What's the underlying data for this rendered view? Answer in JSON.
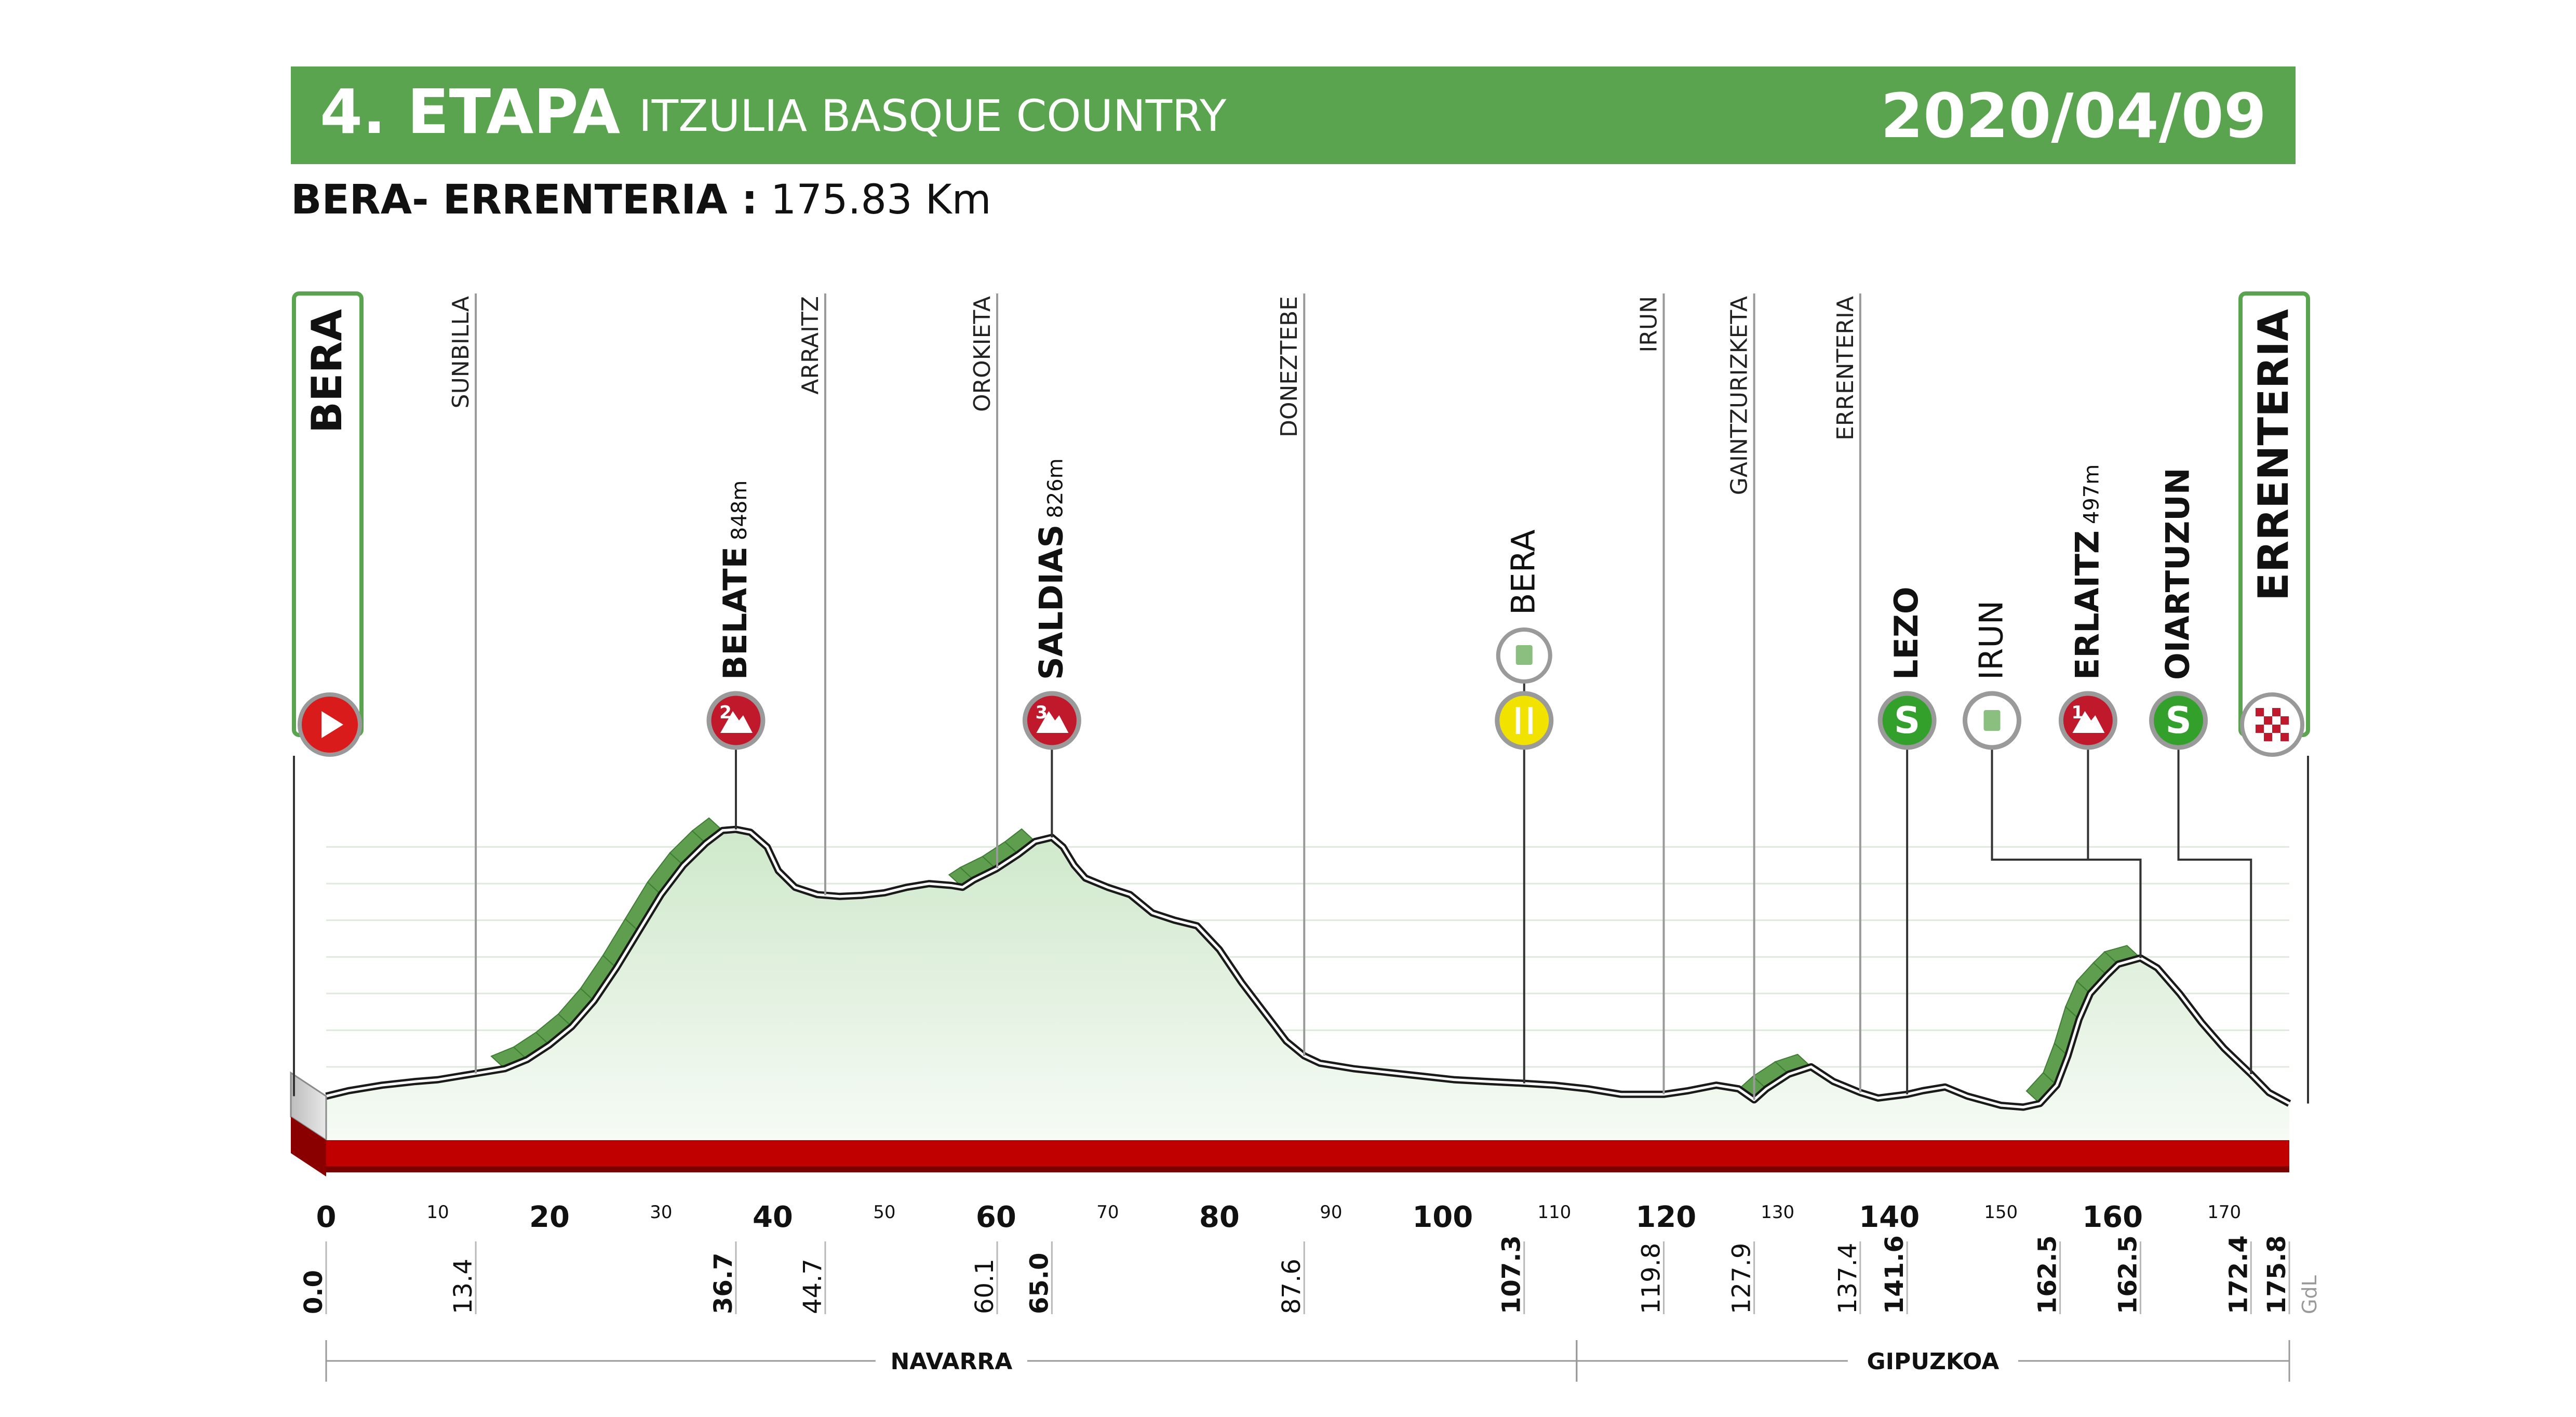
{
  "header": {
    "stage": "4. ETAPA",
    "race": "ITZULIA BASQUE COUNTRY",
    "date": "2020/04/09",
    "route": "BERA- ERRENTERIA :",
    "distance": "175.83 Km"
  },
  "colors": {
    "banner": "#5ba44f",
    "climb_green": "#5e9e4e",
    "profile_fill": "#e4f1e2",
    "base_red": "#c00000",
    "sprint_green": "#33a02c",
    "kom_red": "#c0192b",
    "feed_yellow": "#f2e200"
  },
  "chart_data": {
    "type": "area",
    "x_unit": "km",
    "xlim": [
      0,
      175.83
    ],
    "ylim": [
      0,
      900
    ],
    "profile": [
      [
        0,
        120
      ],
      [
        2,
        135
      ],
      [
        5,
        150
      ],
      [
        8,
        160
      ],
      [
        10,
        165
      ],
      [
        12,
        175
      ],
      [
        14,
        185
      ],
      [
        16,
        195
      ],
      [
        18,
        220
      ],
      [
        20,
        260
      ],
      [
        22,
        310
      ],
      [
        24,
        380
      ],
      [
        26,
        470
      ],
      [
        28,
        570
      ],
      [
        30,
        670
      ],
      [
        32,
        750
      ],
      [
        34,
        810
      ],
      [
        35.5,
        845
      ],
      [
        36.7,
        848
      ],
      [
        38,
        840
      ],
      [
        39.5,
        800
      ],
      [
        40.5,
        735
      ],
      [
        42,
        690
      ],
      [
        44,
        670
      ],
      [
        46,
        665
      ],
      [
        48,
        668
      ],
      [
        50,
        675
      ],
      [
        52,
        690
      ],
      [
        54,
        700
      ],
      [
        56,
        695
      ],
      [
        57,
        690
      ],
      [
        58,
        710
      ],
      [
        60,
        740
      ],
      [
        62,
        780
      ],
      [
        63.5,
        815
      ],
      [
        65,
        826
      ],
      [
        66,
        800
      ],
      [
        67,
        750
      ],
      [
        68,
        715
      ],
      [
        70,
        690
      ],
      [
        72,
        670
      ],
      [
        74,
        620
      ],
      [
        76,
        600
      ],
      [
        78,
        585
      ],
      [
        80,
        520
      ],
      [
        82,
        430
      ],
      [
        84,
        350
      ],
      [
        86,
        270
      ],
      [
        87.6,
        230
      ],
      [
        89,
        210
      ],
      [
        92,
        195
      ],
      [
        95,
        185
      ],
      [
        98,
        175
      ],
      [
        101,
        165
      ],
      [
        104,
        160
      ],
      [
        107.3,
        155
      ],
      [
        110,
        150
      ],
      [
        113,
        140
      ],
      [
        116,
        125
      ],
      [
        119.8,
        125
      ],
      [
        122,
        135
      ],
      [
        124.5,
        150
      ],
      [
        126.5,
        140
      ],
      [
        127.9,
        110
      ],
      [
        129,
        140
      ],
      [
        131,
        180
      ],
      [
        133,
        200
      ],
      [
        135,
        160
      ],
      [
        137.4,
        130
      ],
      [
        139,
        115
      ],
      [
        141.6,
        125
      ],
      [
        143,
        135
      ],
      [
        145,
        145
      ],
      [
        147,
        120
      ],
      [
        150,
        95
      ],
      [
        152,
        90
      ],
      [
        153.5,
        100
      ],
      [
        155,
        150
      ],
      [
        156,
        230
      ],
      [
        157,
        330
      ],
      [
        158,
        400
      ],
      [
        159.5,
        450
      ],
      [
        160.5,
        480
      ],
      [
        162.5,
        497
      ],
      [
        164,
        470
      ],
      [
        166,
        400
      ],
      [
        168,
        320
      ],
      [
        170,
        250
      ],
      [
        172.4,
        180
      ],
      [
        174,
        130
      ],
      [
        175.83,
        100
      ]
    ],
    "x_ticks_major": [
      0,
      20,
      40,
      60,
      80,
      100,
      120,
      140,
      160
    ],
    "x_ticks_minor": [
      10,
      30,
      50,
      70,
      90,
      110,
      130,
      150,
      170
    ],
    "x_ticks": [
      "0",
      "10",
      "20",
      "30",
      "40",
      "50",
      "60",
      "70",
      "80",
      "90",
      "100",
      "110",
      "120",
      "130",
      "140",
      "150",
      "160",
      "170"
    ],
    "start": {
      "name": "BERA",
      "km": 0
    },
    "finish": {
      "name": "ERRENTERIA",
      "km": 175.83
    },
    "towns": [
      {
        "name": "SUNBILLA",
        "km": 13.4
      },
      {
        "name": "ARRAITZ",
        "km": 44.7
      },
      {
        "name": "OROKIETA",
        "km": 60.1
      },
      {
        "name": "DONEZTEBE",
        "km": 87.6
      },
      {
        "name": "IRUN",
        "km": 119.8
      },
      {
        "name": "GAINTZURIZKETA",
        "km": 127.9
      },
      {
        "name": "ERRENTERIA",
        "km": 137.4
      }
    ],
    "points": [
      {
        "name": "BELATE",
        "alt": "848m",
        "km": 36.7,
        "type": "kom",
        "cat": "2"
      },
      {
        "name": "SALDIAS",
        "alt": "826m",
        "km": 65.0,
        "type": "kom",
        "cat": "3"
      },
      {
        "name": "BERA",
        "alt": "",
        "km": 107.3,
        "type": "feed"
      },
      {
        "name": "LEZO",
        "alt": "",
        "km": 141.6,
        "type": "sprint"
      },
      {
        "name": "IRUN",
        "alt": "",
        "km": 149.2,
        "type": "waste",
        "leader_km": 162.5
      },
      {
        "name": "ERLAITZ",
        "alt": "497m",
        "km": 157.8,
        "type": "kom",
        "cat": "1",
        "leader_km": 162.5
      },
      {
        "name": "OIARTUZUN",
        "alt": "",
        "km": 165.9,
        "type": "sprint",
        "leader_km": 172.4
      }
    ],
    "km_labels": [
      {
        "text": "0.0",
        "km": 0,
        "bold": true
      },
      {
        "text": "13.4",
        "km": 13.4
      },
      {
        "text": "36.7",
        "km": 36.7,
        "bold": true
      },
      {
        "text": "44.7",
        "km": 44.7
      },
      {
        "text": "60.1",
        "km": 60.1
      },
      {
        "text": "65.0",
        "km": 65.0,
        "bold": true
      },
      {
        "text": "87.6",
        "km": 87.6
      },
      {
        "text": "107.3",
        "km": 107.3,
        "bold": true
      },
      {
        "text": "119.8",
        "km": 119.8
      },
      {
        "text": "127.9",
        "km": 127.9
      },
      {
        "text": "137.4",
        "km": 137.4
      },
      {
        "text": "141.6",
        "km": 141.6,
        "bold": true
      },
      {
        "text": "162.5",
        "km": 155.3,
        "bold": true
      },
      {
        "text": "162.5",
        "km": 162.5,
        "bold": true
      },
      {
        "text": "172.4",
        "km": 172.4,
        "bold": true
      },
      {
        "text": "175.8",
        "km": 175.83,
        "bold": true
      }
    ],
    "regions": [
      {
        "name": "NAVARRA",
        "from_km": 0,
        "to_km": 112
      },
      {
        "name": "GIPUZKOA",
        "from_km": 112,
        "to_km": 175.83
      }
    ],
    "credit": "GdL"
  }
}
